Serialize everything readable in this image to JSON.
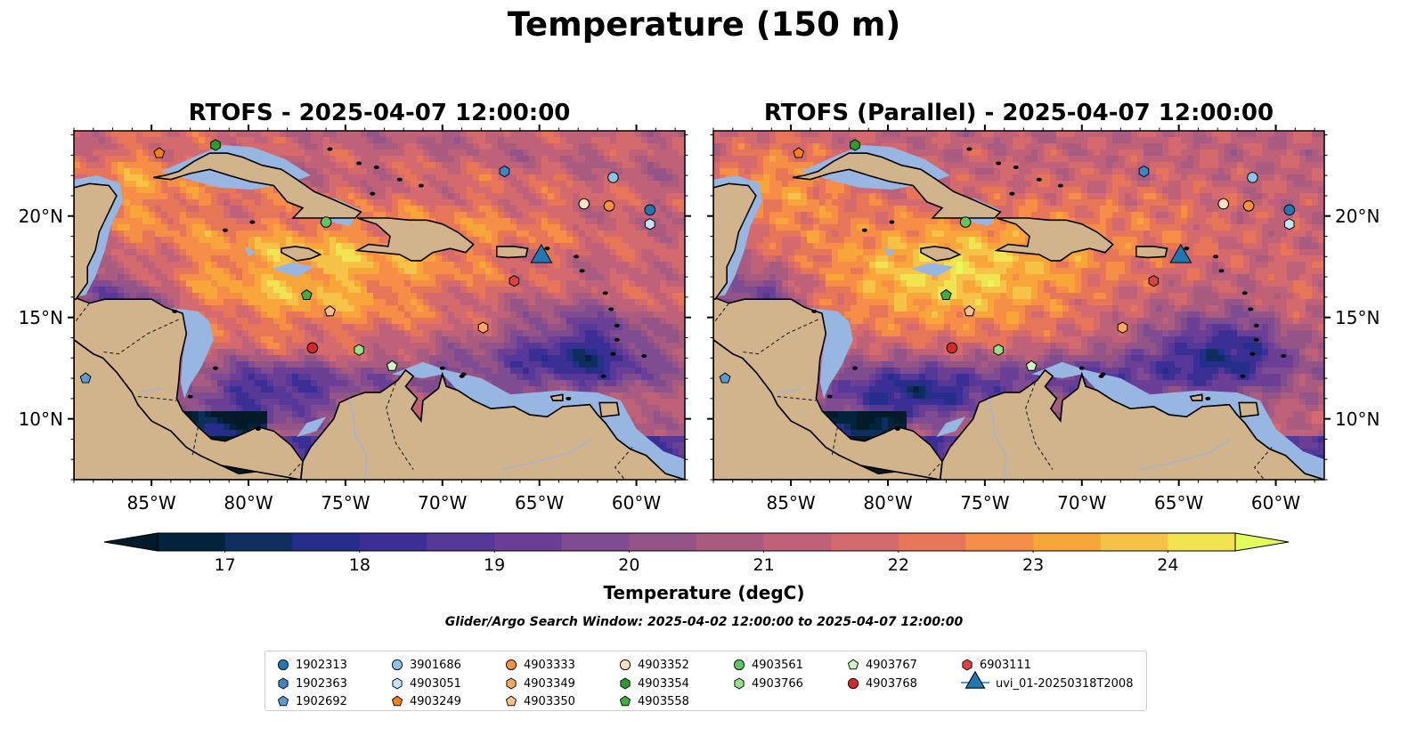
{
  "figure": {
    "suptitle": "Temperature (150 m)",
    "search_window_text": "Glider/Argo Search Window: 2025-04-02 12:00:00 to 2025-04-07 12:00:00"
  },
  "maps": [
    {
      "title": "RTOFS - 2025-04-07 12:00:00",
      "variant": "rtofs"
    },
    {
      "title": "RTOFS (Parallel) - 2025-04-07 12:00:00",
      "variant": "parallel"
    }
  ],
  "map_axes": {
    "lon_range": [
      -89.0,
      -57.5
    ],
    "lat_range": [
      7.0,
      24.2
    ],
    "lon_ticks": [
      {
        "value": -85,
        "label": "85°W"
      },
      {
        "value": -80,
        "label": "80°W"
      },
      {
        "value": -75,
        "label": "75°W"
      },
      {
        "value": -70,
        "label": "70°W"
      },
      {
        "value": -65,
        "label": "65°W"
      },
      {
        "value": -60,
        "label": "60°W"
      }
    ],
    "lat_ticks": [
      {
        "value": 10,
        "label": "10°N"
      },
      {
        "value": 15,
        "label": "15°N"
      },
      {
        "value": 20,
        "label": "20°N"
      }
    ]
  },
  "colorbar": {
    "title": "Temperature (degC)",
    "min": 16.5,
    "max": 24.5,
    "step": 0.5,
    "ticks": [
      {
        "value": 17,
        "label": "17"
      },
      {
        "value": 18,
        "label": "18"
      },
      {
        "value": 19,
        "label": "19"
      },
      {
        "value": 20,
        "label": "20"
      },
      {
        "value": 21,
        "label": "21"
      },
      {
        "value": 22,
        "label": "22"
      },
      {
        "value": 23,
        "label": "23"
      },
      {
        "value": 24,
        "label": "24"
      }
    ],
    "colors": [
      "#03233a",
      "#0f2e5f",
      "#262e8c",
      "#3b2f95",
      "#563898",
      "#6a3f95",
      "#7f4b91",
      "#955488",
      "#aa5c80",
      "#bf6179",
      "#d4696e",
      "#e77557",
      "#f68e47",
      "#f8a539",
      "#f6c247",
      "#f2e350"
    ],
    "under_color": "#021a2a",
    "over_color": "#e6fb5a"
  },
  "colors": {
    "land": "#d2b48c",
    "shelf_water": "#97b6e2",
    "deep_dark": "#03233a"
  },
  "legend": {
    "entries": [
      {
        "id": "1902313",
        "label": "1902313",
        "marker": "circle",
        "color": "#1f77b4"
      },
      {
        "id": "1902363",
        "label": "1902363",
        "marker": "hexagon",
        "color": "#3a86c8"
      },
      {
        "id": "1902692",
        "label": "1902692",
        "marker": "pentagon",
        "color": "#5b9bd5"
      },
      {
        "id": "3901686",
        "label": "3901686",
        "marker": "circle",
        "color": "#8ec4ea"
      },
      {
        "id": "4903051",
        "label": "4903051",
        "marker": "hexagon",
        "color": "#c6e3f8"
      },
      {
        "id": "4903249",
        "label": "4903249",
        "marker": "pentagon",
        "color": "#ff7f0e"
      },
      {
        "id": "4903333",
        "label": "4903333",
        "marker": "circle",
        "color": "#f5923a"
      },
      {
        "id": "4903349",
        "label": "4903349",
        "marker": "hexagon",
        "color": "#fba75f"
      },
      {
        "id": "4903350",
        "label": "4903350",
        "marker": "pentagon",
        "color": "#fdc08a"
      },
      {
        "id": "4903352",
        "label": "4903352",
        "marker": "circle",
        "color": "#fde0c4"
      },
      {
        "id": "4903354",
        "label": "4903354",
        "marker": "hexagon",
        "color": "#2a9d2a"
      },
      {
        "id": "4903558",
        "label": "4903558",
        "marker": "pentagon",
        "color": "#3fb03f"
      },
      {
        "id": "4903561",
        "label": "4903561",
        "marker": "circle",
        "color": "#62c562"
      },
      {
        "id": "4903766",
        "label": "4903766",
        "marker": "hexagon",
        "color": "#98df8a"
      },
      {
        "id": "4903767",
        "label": "4903767",
        "marker": "pentagon",
        "color": "#cdf5c4"
      },
      {
        "id": "4903768",
        "label": "4903768",
        "marker": "circle",
        "color": "#d62728"
      },
      {
        "id": "6903111",
        "label": "6903111",
        "marker": "hexagon",
        "color": "#e04040"
      },
      {
        "id": "uvi_01-20250318T2008",
        "label": "uvi_01-20250318T2008",
        "marker": "triangle",
        "color": "#1f77b4"
      }
    ]
  },
  "map_markers": [
    {
      "legend_id": "1902313",
      "lon": -59.3,
      "lat": 20.3
    },
    {
      "legend_id": "1902363",
      "lon": -66.8,
      "lat": 22.2
    },
    {
      "legend_id": "1902692",
      "lon": -88.4,
      "lat": 12.0
    },
    {
      "legend_id": "3901686",
      "lon": -61.2,
      "lat": 21.9
    },
    {
      "legend_id": "4903051",
      "lon": -59.3,
      "lat": 19.6
    },
    {
      "legend_id": "4903249",
      "lon": -84.6,
      "lat": 23.1
    },
    {
      "legend_id": "4903333",
      "lon": -61.4,
      "lat": 20.5
    },
    {
      "legend_id": "4903349",
      "lon": -67.9,
      "lat": 14.5
    },
    {
      "legend_id": "4903350",
      "lon": -75.8,
      "lat": 15.3
    },
    {
      "legend_id": "4903352",
      "lon": -62.7,
      "lat": 20.6
    },
    {
      "legend_id": "4903354",
      "lon": -81.7,
      "lat": 23.5
    },
    {
      "legend_id": "4903558",
      "lon": -77.0,
      "lat": 16.1
    },
    {
      "legend_id": "4903561",
      "lon": -76.0,
      "lat": 19.7
    },
    {
      "legend_id": "4903766",
      "lon": -74.3,
      "lat": 13.4
    },
    {
      "legend_id": "4903767",
      "lon": -72.6,
      "lat": 12.6
    },
    {
      "legend_id": "4903768",
      "lon": -76.7,
      "lat": 13.5
    },
    {
      "legend_id": "6903111",
      "lon": -66.3,
      "lat": 16.8
    },
    {
      "legend_id": "uvi_01-20250318T2008",
      "lon": -64.9,
      "lat": 18.0
    }
  ]
}
